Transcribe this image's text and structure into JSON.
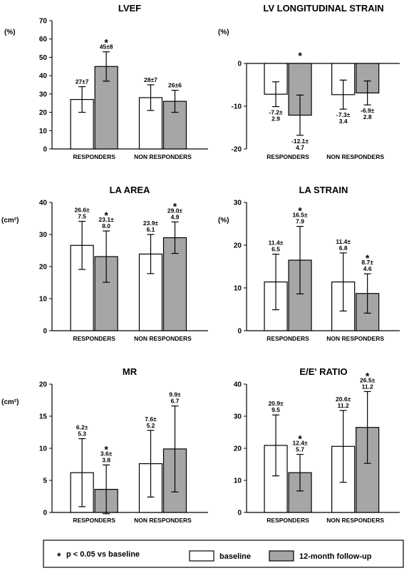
{
  "colors": {
    "baseline": "#ffffff",
    "followup": "#a6a6a6",
    "stroke": "#000000"
  },
  "legend": {
    "star": "*",
    "note": "p < 0.05 vs baseline",
    "baseline": "baseline",
    "followup": "12-month follow-up"
  },
  "chart_data": [
    {
      "type": "bar",
      "title": "LVEF",
      "ylabel": "(%)",
      "categories": [
        "RESPONDERS",
        "NON RESPONDERS"
      ],
      "ylim": [
        0,
        70
      ],
      "yticks": [
        0,
        10,
        20,
        30,
        40,
        50,
        60,
        70
      ],
      "series": [
        {
          "name": "baseline",
          "values": [
            27,
            28
          ],
          "errors": [
            7,
            7
          ],
          "labels": [
            [
              "27±7"
            ],
            [
              "28±7"
            ]
          ],
          "sig": [
            false,
            false
          ]
        },
        {
          "name": "12-month follow-up",
          "values": [
            45,
            26
          ],
          "errors": [
            8,
            6
          ],
          "labels": [
            [
              "45±8"
            ],
            [
              "26±6"
            ]
          ],
          "sig": [
            true,
            false
          ]
        }
      ]
    },
    {
      "type": "bar",
      "title": "LV LONGITUDINAL STRAIN",
      "ylabel": "(%)",
      "categories": [
        "RESPONDERS",
        "NON RESPONDERS"
      ],
      "ylim": [
        -20,
        0
      ],
      "yticks": [
        -20,
        -10,
        0
      ],
      "series": [
        {
          "name": "baseline",
          "values": [
            -7.2,
            -7.3
          ],
          "errors": [
            2.9,
            3.4
          ],
          "labels": [
            [
              "-7.2±",
              "2.9"
            ],
            [
              "-7.3±",
              "3.4"
            ]
          ],
          "sig": [
            false,
            false
          ]
        },
        {
          "name": "12-month follow-up",
          "values": [
            -12.1,
            -6.9
          ],
          "errors": [
            4.7,
            2.8
          ],
          "labels": [
            [
              "-12.1±",
              "4.7"
            ],
            [
              "-6.9±",
              "2.8"
            ]
          ],
          "sig": [
            true,
            false
          ]
        }
      ]
    },
    {
      "type": "bar",
      "title": "LA AREA",
      "ylabel": "(cm²)",
      "categories": [
        "RESPONDERS",
        "NON RESPONDERS"
      ],
      "ylim": [
        0,
        40
      ],
      "yticks": [
        0,
        10,
        20,
        30,
        40
      ],
      "series": [
        {
          "name": "baseline",
          "values": [
            26.6,
            23.9
          ],
          "errors": [
            7.5,
            6.1
          ],
          "labels": [
            [
              "26.6±",
              "7.5"
            ],
            [
              "23.9±",
              "6.1"
            ]
          ],
          "sig": [
            false,
            false
          ]
        },
        {
          "name": "12-month follow-up",
          "values": [
            23.1,
            29.0
          ],
          "errors": [
            8.0,
            4.9
          ],
          "labels": [
            [
              "23.1±",
              "8.0"
            ],
            [
              "29.0±",
              "4.9"
            ]
          ],
          "sig": [
            true,
            true
          ]
        }
      ]
    },
    {
      "type": "bar",
      "title": "LA STRAIN",
      "ylabel": "(%)",
      "categories": [
        "RESPONDERS",
        "NON RESPONDERS"
      ],
      "ylim": [
        0,
        30
      ],
      "yticks": [
        0,
        10,
        20,
        30
      ],
      "series": [
        {
          "name": "baseline",
          "values": [
            11.4,
            11.4
          ],
          "errors": [
            6.5,
            6.8
          ],
          "labels": [
            [
              "11.4±",
              "6.5"
            ],
            [
              "11.4±",
              "6.8"
            ]
          ],
          "sig": [
            false,
            false
          ]
        },
        {
          "name": "12-month follow-up",
          "values": [
            16.5,
            8.7
          ],
          "errors": [
            7.9,
            4.6
          ],
          "labels": [
            [
              "16.5±",
              "7.9"
            ],
            [
              "8.7±",
              "4.6"
            ]
          ],
          "sig": [
            true,
            true
          ]
        }
      ]
    },
    {
      "type": "bar",
      "title": "MR",
      "ylabel": "(cm²)",
      "categories": [
        "RESPONDERS",
        "NON RESPONDERS"
      ],
      "ylim": [
        0,
        20
      ],
      "yticks": [
        0,
        5,
        10,
        15,
        20
      ],
      "series": [
        {
          "name": "baseline",
          "values": [
            6.2,
            7.6
          ],
          "errors": [
            5.3,
            5.2
          ],
          "labels": [
            [
              "6.2±",
              "5.3"
            ],
            [
              "7.6±",
              "5.2"
            ]
          ],
          "sig": [
            false,
            false
          ]
        },
        {
          "name": "12-month follow-up",
          "values": [
            3.6,
            9.9
          ],
          "errors": [
            3.8,
            6.7
          ],
          "labels": [
            [
              "3.6±",
              "3.8"
            ],
            [
              "9.9±",
              "6.7"
            ]
          ],
          "sig": [
            true,
            false
          ]
        }
      ]
    },
    {
      "type": "bar",
      "title": "E/E' RATIO",
      "ylabel": "",
      "categories": [
        "RESPONDERS",
        "NON RESPONDERS"
      ],
      "ylim": [
        0,
        40
      ],
      "yticks": [
        0,
        10,
        20,
        30,
        40
      ],
      "series": [
        {
          "name": "baseline",
          "values": [
            20.9,
            20.6
          ],
          "errors": [
            9.5,
            11.2
          ],
          "labels": [
            [
              "20.9±",
              "9.5"
            ],
            [
              "20.6±",
              "11.2"
            ]
          ],
          "sig": [
            false,
            false
          ]
        },
        {
          "name": "12-month follow-up",
          "values": [
            12.4,
            26.5
          ],
          "errors": [
            5.7,
            11.2
          ],
          "labels": [
            [
              "12.4±",
              "5.7"
            ],
            [
              "26.5±",
              "11.2"
            ]
          ],
          "sig": [
            true,
            true
          ]
        }
      ]
    }
  ]
}
